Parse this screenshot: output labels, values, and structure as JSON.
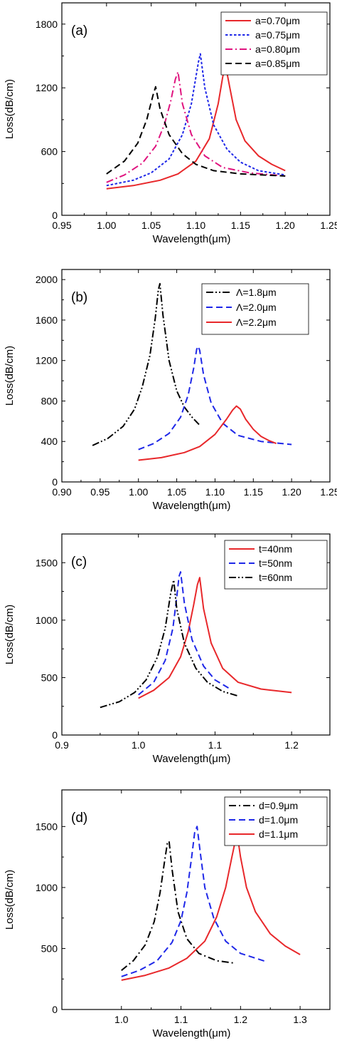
{
  "chart_data": [
    {
      "type": "line",
      "panel_label": "(a)",
      "xlabel": "Wavelength(μm)",
      "ylabel": "Loss(dB/cm)",
      "xlim": [
        0.95,
        1.25
      ],
      "ylim": [
        0,
        2000
      ],
      "xticks": [
        0.95,
        1.0,
        1.05,
        1.1,
        1.15,
        1.2,
        1.25
      ],
      "xtick_labels": [
        "0.95",
        "1.00",
        "1.05",
        "1.10",
        "1.15",
        "1.20",
        "1.25"
      ],
      "yticks": [
        0,
        600,
        1200,
        1800
      ],
      "ytick_labels": [
        "0",
        "600",
        "1200",
        "1800"
      ],
      "legend_position": "top-right",
      "series": [
        {
          "name": "a=0.70μm",
          "color": "#e8282b",
          "dash": "solid",
          "x": [
            1.0,
            1.03,
            1.06,
            1.08,
            1.1,
            1.115,
            1.125,
            1.13,
            1.133,
            1.138,
            1.145,
            1.155,
            1.17,
            1.185,
            1.2
          ],
          "y": [
            250,
            280,
            330,
            390,
            510,
            720,
            1050,
            1300,
            1420,
            1200,
            900,
            700,
            560,
            480,
            420
          ]
        },
        {
          "name": "a=0.75μm",
          "color": "#1f28e8",
          "dash": "dot",
          "x": [
            1.0,
            1.03,
            1.05,
            1.07,
            1.085,
            1.095,
            1.1,
            1.103,
            1.105,
            1.11,
            1.12,
            1.135,
            1.15,
            1.17,
            1.2
          ],
          "y": [
            280,
            330,
            400,
            530,
            760,
            1050,
            1300,
            1450,
            1520,
            1200,
            850,
            620,
            500,
            420,
            380
          ]
        },
        {
          "name": "a=0.80μm",
          "color": "#e0147f",
          "dash": "dashdot",
          "x": [
            1.0,
            1.02,
            1.04,
            1.055,
            1.065,
            1.072,
            1.077,
            1.08,
            1.085,
            1.095,
            1.11,
            1.13,
            1.16,
            1.2
          ],
          "y": [
            310,
            380,
            490,
            650,
            860,
            1080,
            1280,
            1350,
            1050,
            760,
            560,
            450,
            400,
            370
          ]
        },
        {
          "name": "a=0.85μm",
          "color": "#000000",
          "dash": "dash",
          "x": [
            1.0,
            1.02,
            1.035,
            1.045,
            1.052,
            1.055,
            1.06,
            1.07,
            1.085,
            1.1,
            1.12,
            1.15,
            1.2
          ],
          "y": [
            390,
            510,
            680,
            900,
            1130,
            1210,
            1000,
            760,
            580,
            480,
            420,
            390,
            370
          ]
        }
      ]
    },
    {
      "type": "line",
      "panel_label": "(b)",
      "xlabel": "Wavelength(μm)",
      "ylabel": "Loss(dB/cm)",
      "xlim": [
        0.9,
        1.25
      ],
      "ylim": [
        0,
        2100
      ],
      "xticks": [
        0.9,
        0.95,
        1.0,
        1.05,
        1.1,
        1.15,
        1.2,
        1.25
      ],
      "xtick_labels": [
        "0.90",
        "0.95",
        "1.00",
        "1.05",
        "1.10",
        "1.15",
        "1.20",
        "1.25"
      ],
      "yticks": [
        0,
        400,
        800,
        1200,
        1600,
        2000
      ],
      "ytick_labels": [
        "0",
        "400",
        "800",
        "1200",
        "1600",
        "2000"
      ],
      "legend_position": "top-right",
      "series": [
        {
          "name": "Λ=1.8μm",
          "color": "#000000",
          "dash": "dashdotdot",
          "x": [
            0.94,
            0.96,
            0.98,
            0.995,
            1.005,
            1.015,
            1.022,
            1.026,
            1.028,
            1.032,
            1.04,
            1.05,
            1.06,
            1.07,
            1.08
          ],
          "y": [
            360,
            430,
            550,
            720,
            940,
            1250,
            1620,
            1900,
            1960,
            1650,
            1200,
            900,
            740,
            640,
            560
          ]
        },
        {
          "name": "Λ=2.0μm",
          "color": "#1f28e8",
          "dash": "dash",
          "x": [
            1.0,
            1.02,
            1.04,
            1.055,
            1.065,
            1.072,
            1.076,
            1.078,
            1.08,
            1.085,
            1.095,
            1.11,
            1.13,
            1.16,
            1.2
          ],
          "y": [
            320,
            380,
            480,
            640,
            860,
            1120,
            1310,
            1340,
            1300,
            1060,
            780,
            580,
            460,
            400,
            370
          ]
        },
        {
          "name": "Λ=2.2μm",
          "color": "#e8282b",
          "dash": "solid",
          "x": [
            1.0,
            1.03,
            1.06,
            1.08,
            1.1,
            1.115,
            1.123,
            1.128,
            1.133,
            1.14,
            1.15,
            1.16,
            1.17,
            1.18
          ],
          "y": [
            215,
            240,
            290,
            350,
            470,
            620,
            710,
            750,
            720,
            620,
            520,
            450,
            410,
            380
          ]
        }
      ]
    },
    {
      "type": "line",
      "panel_label": "(c)",
      "xlabel": "Wavelength(μm)",
      "ylabel": "Loss(dB/cm)",
      "xlim": [
        0.9,
        1.25
      ],
      "ylim": [
        0,
        1750
      ],
      "xticks": [
        0.9,
        1.0,
        1.1,
        1.2
      ],
      "xtick_labels": [
        "0.9",
        "1.0",
        "1.1",
        "1.2"
      ],
      "yticks": [
        0,
        500,
        1000,
        1500
      ],
      "ytick_labels": [
        "0",
        "500",
        "1000",
        "1500"
      ],
      "legend_position": "top-right",
      "series": [
        {
          "name": "t=40nm",
          "color": "#e8282b",
          "dash": "solid",
          "x": [
            1.0,
            1.02,
            1.04,
            1.055,
            1.065,
            1.072,
            1.077,
            1.08,
            1.085,
            1.095,
            1.11,
            1.13,
            1.16,
            1.2
          ],
          "y": [
            320,
            390,
            500,
            680,
            900,
            1130,
            1310,
            1370,
            1100,
            800,
            580,
            460,
            400,
            370
          ]
        },
        {
          "name": "t=50nm",
          "color": "#1f28e8",
          "dash": "dash",
          "x": [
            1.0,
            1.02,
            1.035,
            1.045,
            1.05,
            1.053,
            1.055,
            1.06,
            1.07,
            1.085,
            1.1,
            1.12
          ],
          "y": [
            350,
            460,
            650,
            930,
            1200,
            1380,
            1420,
            1150,
            830,
            600,
            480,
            400
          ]
        },
        {
          "name": "t=60nm",
          "color": "#000000",
          "dash": "dashdotdot",
          "x": [
            0.95,
            0.975,
            0.995,
            1.01,
            1.025,
            1.035,
            1.042,
            1.046,
            1.05,
            1.06,
            1.075,
            1.09,
            1.11,
            1.13
          ],
          "y": [
            240,
            290,
            370,
            480,
            680,
            930,
            1230,
            1350,
            1100,
            800,
            580,
            460,
            380,
            340
          ]
        }
      ]
    },
    {
      "type": "line",
      "panel_label": "(d)",
      "xlabel": "Wavelength(μm)",
      "ylabel": "Loss(dB/cm)",
      "xlim": [
        0.9,
        1.35
      ],
      "ylim": [
        0,
        1800
      ],
      "xticks": [
        1.0,
        1.1,
        1.2,
        1.3
      ],
      "xtick_labels": [
        "1.0",
        "1.1",
        "1.2",
        "1.3"
      ],
      "yticks": [
        0,
        500,
        1000,
        1500
      ],
      "ytick_labels": [
        "0",
        "500",
        "1000",
        "1500"
      ],
      "legend_position": "top-right",
      "series": [
        {
          "name": "d=0.9μm",
          "color": "#000000",
          "dash": "dashdot",
          "x": [
            1.0,
            1.02,
            1.04,
            1.055,
            1.065,
            1.072,
            1.077,
            1.08,
            1.085,
            1.095,
            1.11,
            1.13,
            1.16,
            1.19
          ],
          "y": [
            320,
            400,
            530,
            720,
            960,
            1200,
            1360,
            1380,
            1150,
            800,
            580,
            460,
            400,
            380
          ]
        },
        {
          "name": "d=1.0μm",
          "color": "#1f28e8",
          "dash": "dash",
          "x": [
            1.0,
            1.03,
            1.06,
            1.085,
            1.1,
            1.11,
            1.118,
            1.123,
            1.127,
            1.132,
            1.14,
            1.155,
            1.175,
            1.2,
            1.245
          ],
          "y": [
            270,
            320,
            400,
            550,
            730,
            960,
            1250,
            1450,
            1500,
            1300,
            1000,
            750,
            560,
            460,
            390
          ]
        },
        {
          "name": "d=1.1μm",
          "color": "#e8282b",
          "dash": "solid",
          "x": [
            1.0,
            1.04,
            1.08,
            1.11,
            1.14,
            1.16,
            1.175,
            1.185,
            1.192,
            1.195,
            1.2,
            1.21,
            1.225,
            1.25,
            1.275,
            1.3
          ],
          "y": [
            240,
            280,
            340,
            420,
            560,
            760,
            1000,
            1240,
            1400,
            1420,
            1250,
            1000,
            800,
            620,
            520,
            450
          ]
        }
      ]
    }
  ]
}
